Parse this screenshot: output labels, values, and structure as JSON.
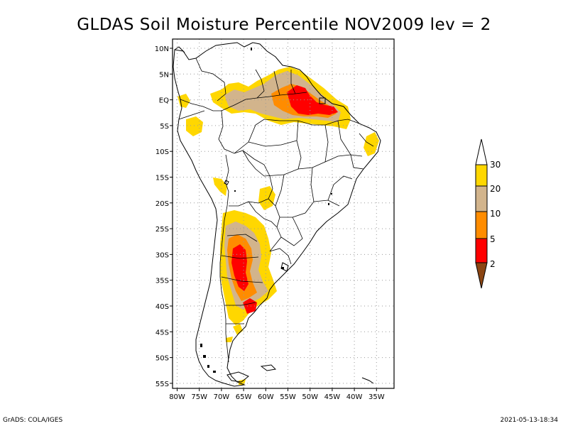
{
  "title": "GLDAS Soil Moisture Percentile NOV2009 lev = 2",
  "lat_labels": [
    "10N",
    "5N",
    "EQ",
    "5S",
    "10S",
    "15S",
    "20S",
    "25S",
    "30S",
    "35S",
    "40S",
    "45S",
    "50S",
    "55S"
  ],
  "lon_labels": [
    "80W",
    "75W",
    "70W",
    "65W",
    "60W",
    "55W",
    "50W",
    "45W",
    "40W",
    "35W"
  ],
  "legend": {
    "labels": [
      "30",
      "20",
      "10",
      "5",
      "2"
    ],
    "colors": {
      "above_30": "#ffffff",
      "20_30": "#ffd700",
      "10_20": "#d2b48c",
      "5_10": "#ff8c00",
      "2_5": "#ff0000",
      "below_2": "#8b4513"
    }
  },
  "footer": {
    "left": "GrADS: COLA/IGES",
    "right": "2021-05-13-18:34"
  }
}
